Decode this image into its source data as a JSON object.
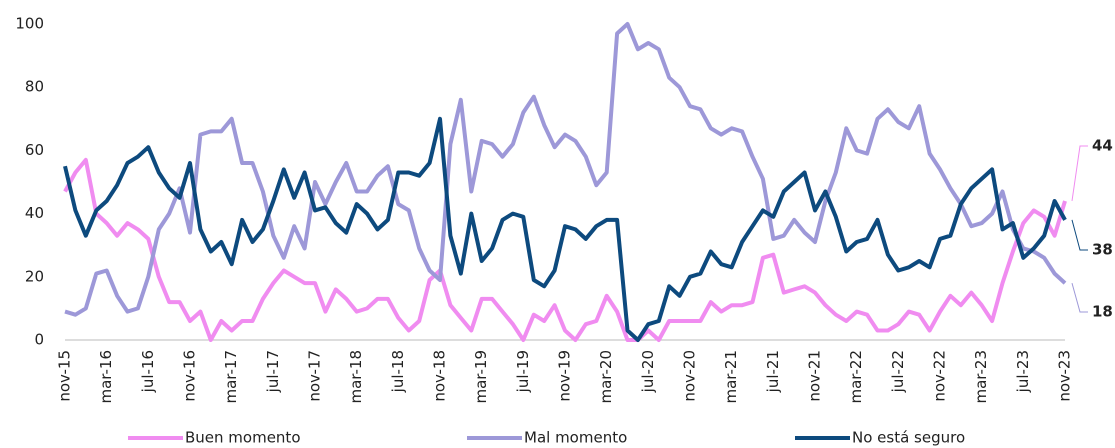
{
  "chart_data": {
    "type": "line",
    "categories": [
      "nov-15",
      null,
      null,
      null,
      "mar-16",
      null,
      null,
      null,
      "jul-16",
      null,
      null,
      null,
      "nov-16",
      null,
      null,
      null,
      "mar-17",
      null,
      null,
      null,
      "jul-17",
      null,
      null,
      null,
      "nov-17",
      null,
      null,
      null,
      "mar-18",
      null,
      null,
      null,
      "jul-18",
      null,
      null,
      null,
      "nov-18",
      null,
      null,
      null,
      "mar-19",
      null,
      null,
      null,
      "jul-19",
      null,
      null,
      null,
      "nov-19",
      null,
      null,
      null,
      "mar-20",
      null,
      null,
      null,
      "jul-20",
      null,
      null,
      null,
      "nov-20",
      null,
      null,
      null,
      "mar-21",
      null,
      null,
      null,
      "jul-21",
      null,
      null,
      null,
      "nov-21",
      null,
      null,
      null,
      "mar-22",
      null,
      null,
      null,
      "jul-22",
      null,
      null,
      null,
      "nov-22",
      null,
      null,
      null,
      "mar-23",
      null,
      null,
      null,
      "jul-23",
      null,
      null,
      null,
      "nov-23"
    ],
    "series": [
      {
        "name": "Buen momento",
        "color": "#f08cf0",
        "values": [
          47,
          53,
          57,
          40,
          37,
          33,
          37,
          35,
          32,
          20,
          12,
          12,
          6,
          9,
          0,
          6,
          3,
          6,
          6,
          13,
          18,
          22,
          20,
          18,
          18,
          9,
          16,
          13,
          9,
          10,
          13,
          13,
          7,
          3,
          6,
          19,
          22,
          11,
          7,
          3,
          13,
          13,
          9,
          5,
          0,
          8,
          6,
          11,
          3,
          0,
          5,
          6,
          14,
          9,
          0,
          0,
          3,
          0,
          6,
          6,
          6,
          6,
          12,
          9,
          11,
          11,
          12,
          26,
          27,
          15,
          16,
          17,
          15,
          11,
          8,
          6,
          9,
          8,
          3,
          3,
          5,
          9,
          8,
          3,
          9,
          14,
          11,
          15,
          11,
          6,
          18,
          28,
          37,
          41,
          39,
          33,
          44
        ]
      },
      {
        "name": "Mal momento",
        "color": "#9d98d8",
        "values": [
          9,
          8,
          10,
          21,
          22,
          14,
          9,
          10,
          20,
          35,
          40,
          48,
          34,
          65,
          66,
          66,
          70,
          56,
          56,
          47,
          33,
          26,
          36,
          29,
          50,
          43,
          50,
          56,
          47,
          47,
          52,
          55,
          43,
          41,
          29,
          22,
          19,
          62,
          76,
          47,
          63,
          62,
          58,
          62,
          72,
          77,
          68,
          61,
          65,
          63,
          58,
          49,
          53,
          97,
          100,
          92,
          94,
          92,
          83,
          80,
          74,
          73,
          67,
          65,
          67,
          66,
          58,
          51,
          32,
          33,
          38,
          34,
          31,
          44,
          53,
          67,
          60,
          59,
          70,
          73,
          69,
          67,
          74,
          59,
          54,
          48,
          43,
          36,
          37,
          40,
          47,
          35,
          29,
          28,
          26,
          21,
          18
        ]
      },
      {
        "name": "No está seguro",
        "color": "#0d4a7e",
        "values": [
          55,
          41,
          33,
          41,
          44,
          49,
          56,
          58,
          61,
          53,
          48,
          45,
          56,
          35,
          28,
          31,
          24,
          38,
          31,
          35,
          44,
          54,
          45,
          53,
          41,
          42,
          37,
          34,
          43,
          40,
          35,
          38,
          53,
          53,
          52,
          56,
          70,
          33,
          21,
          40,
          25,
          29,
          38,
          40,
          39,
          19,
          17,
          22,
          36,
          35,
          32,
          36,
          38,
          38,
          3,
          0,
          5,
          6,
          17,
          14,
          20,
          21,
          28,
          24,
          23,
          31,
          36,
          41,
          39,
          47,
          50,
          53,
          41,
          47,
          39,
          28,
          31,
          32,
          38,
          27,
          22,
          23,
          25,
          23,
          32,
          33,
          43,
          48,
          51,
          54,
          35,
          37,
          26,
          29,
          33,
          44,
          38
        ]
      }
    ],
    "ylim": [
      0,
      100
    ],
    "yticks": [
      0,
      20,
      40,
      60,
      80,
      100
    ]
  }
}
